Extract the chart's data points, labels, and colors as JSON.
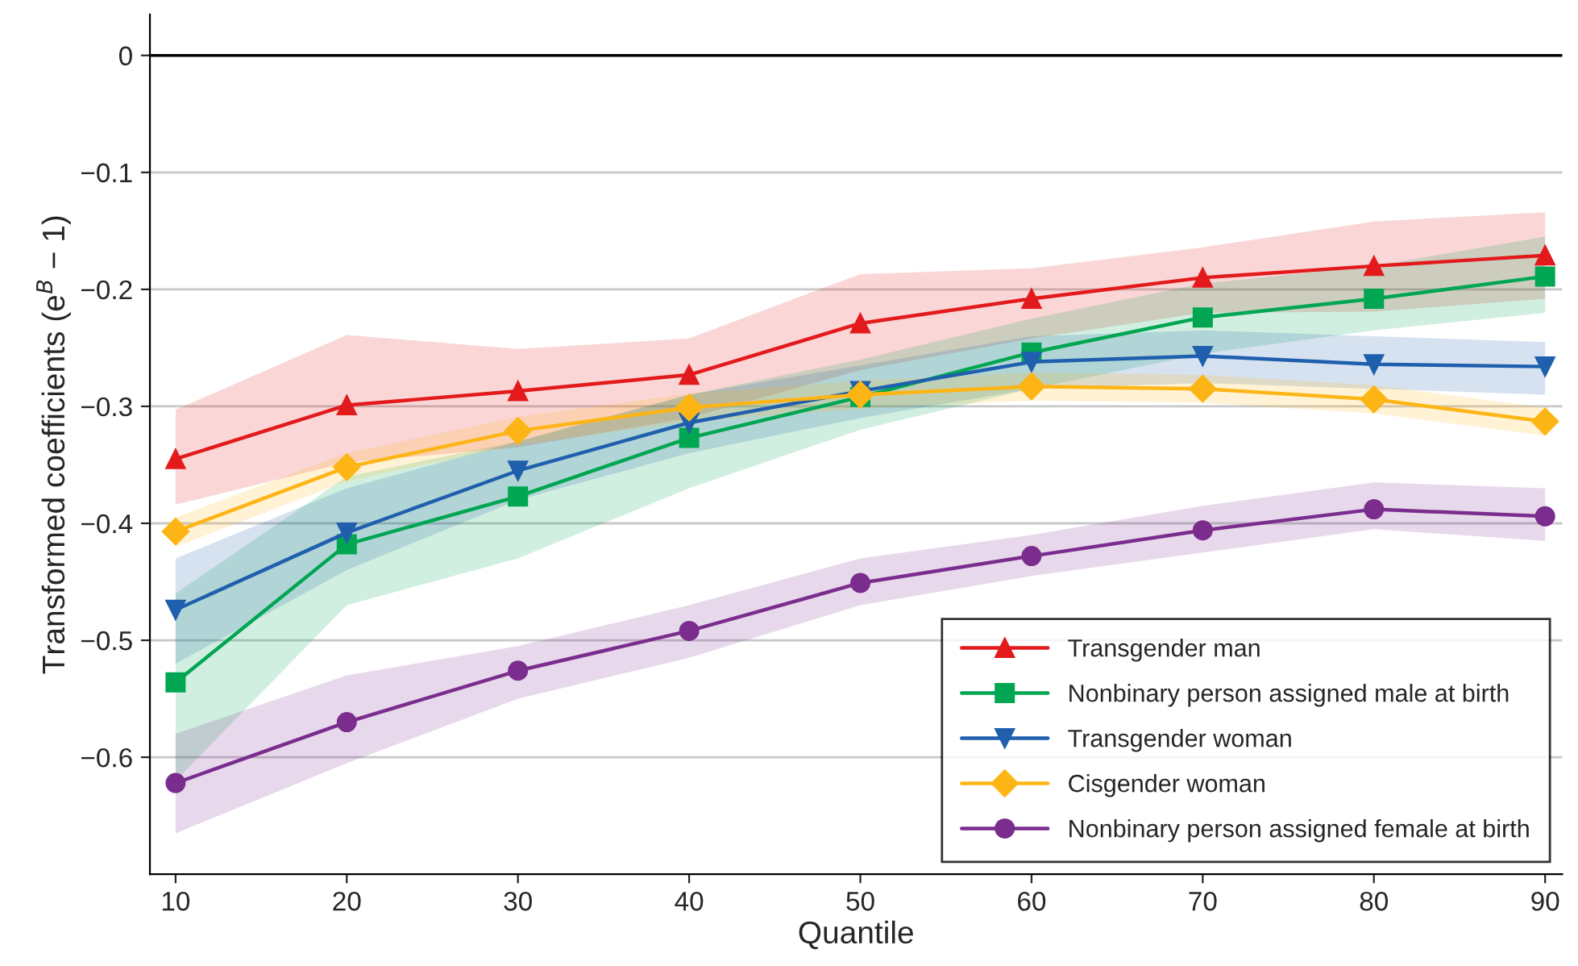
{
  "chart_data": {
    "type": "line",
    "xlabel": "Quantile",
    "ylabel": "Transformed coefficients (e$^{B}$ − 1)",
    "x": [
      10,
      20,
      30,
      40,
      50,
      60,
      70,
      80,
      90
    ],
    "xlim": [
      8.5,
      91
    ],
    "xticks": [
      10,
      20,
      30,
      40,
      50,
      60,
      70,
      80,
      90
    ],
    "ylim": [
      -0.7,
      0.035
    ],
    "yticks": [
      {
        "value": 0,
        "label": "0"
      },
      {
        "value": -0.1,
        "label": "−0.1"
      },
      {
        "value": -0.2,
        "label": "−0.2"
      },
      {
        "value": -0.3,
        "label": "−0.3"
      },
      {
        "value": -0.4,
        "label": "−0.4"
      },
      {
        "value": -0.5,
        "label": "−0.5"
      },
      {
        "value": -0.6,
        "label": "−0.6"
      }
    ],
    "grid": "y",
    "legend": "bottom right",
    "ref_lines": [
      {
        "axis": "y",
        "value": 0,
        "color": "#000000"
      }
    ],
    "series": [
      {
        "name": "Transgender man",
        "color": "#e31a1c",
        "marker": "triangle",
        "values": [
          -0.345,
          -0.299,
          -0.287,
          -0.273,
          -0.229,
          -0.208,
          -0.19,
          -0.18,
          -0.171
        ],
        "lower": [
          -0.384,
          -0.348,
          -0.335,
          -0.31,
          -0.269,
          -0.242,
          -0.22,
          -0.219,
          -0.208
        ],
        "upper": [
          -0.303,
          -0.239,
          -0.251,
          -0.242,
          -0.187,
          -0.182,
          -0.164,
          -0.142,
          -0.134
        ]
      },
      {
        "name": "Nonbinary person assigned male at birth",
        "color": "#00a651",
        "marker": "square",
        "values": [
          -0.536,
          -0.418,
          -0.377,
          -0.327,
          -0.292,
          -0.254,
          -0.224,
          -0.208,
          -0.189
        ],
        "lower": [
          -0.62,
          -0.47,
          -0.43,
          -0.37,
          -0.32,
          -0.285,
          -0.255,
          -0.235,
          -0.22
        ],
        "upper": [
          -0.46,
          -0.36,
          -0.33,
          -0.29,
          -0.26,
          -0.225,
          -0.195,
          -0.18,
          -0.155
        ]
      },
      {
        "name": "Transgender woman",
        "color": "#1f5fad",
        "marker": "triangle_down",
        "values": [
          -0.474,
          -0.408,
          -0.355,
          -0.314,
          -0.287,
          -0.262,
          -0.257,
          -0.264,
          -0.266
        ],
        "lower": [
          -0.52,
          -0.44,
          -0.38,
          -0.34,
          -0.31,
          -0.285,
          -0.28,
          -0.285,
          -0.29
        ],
        "upper": [
          -0.43,
          -0.37,
          -0.33,
          -0.29,
          -0.265,
          -0.24,
          -0.235,
          -0.24,
          -0.245
        ]
      },
      {
        "name": "Cisgender woman",
        "color": "#fdb515",
        "marker": "diamond",
        "values": [
          -0.407,
          -0.352,
          -0.321,
          -0.301,
          -0.29,
          -0.283,
          -0.285,
          -0.294,
          -0.313
        ],
        "lower": [
          -0.42,
          -0.364,
          -0.333,
          -0.313,
          -0.302,
          -0.295,
          -0.297,
          -0.306,
          -0.325
        ],
        "upper": [
          -0.395,
          -0.34,
          -0.309,
          -0.289,
          -0.278,
          -0.271,
          -0.273,
          -0.282,
          -0.301
        ]
      },
      {
        "name": "Nonbinary person assigned female at birth",
        "color": "#7b2d8e",
        "marker": "circle",
        "values": [
          -0.622,
          -0.57,
          -0.526,
          -0.492,
          -0.451,
          -0.428,
          -0.406,
          -0.388,
          -0.394
        ],
        "lower": [
          -0.665,
          -0.605,
          -0.55,
          -0.515,
          -0.47,
          -0.445,
          -0.425,
          -0.405,
          -0.415
        ],
        "upper": [
          -0.58,
          -0.53,
          -0.505,
          -0.47,
          -0.43,
          -0.41,
          -0.385,
          -0.365,
          -0.37
        ]
      }
    ]
  }
}
